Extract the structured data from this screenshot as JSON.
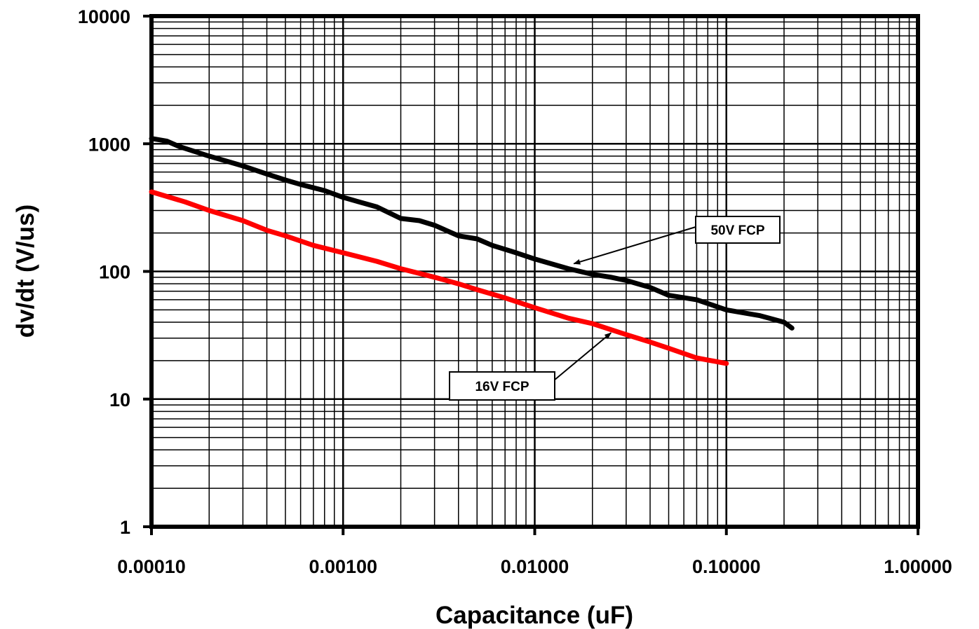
{
  "chart_data": {
    "type": "line",
    "xscale": "log",
    "yscale": "log",
    "xlabel": "Capacitance (uF)",
    "ylabel": "dv/dt  (V/us)",
    "xlim": [
      0.0001,
      1
    ],
    "ylim": [
      1,
      10000
    ],
    "grid": true,
    "x_ticks": [
      "0.00010",
      "0.00100",
      "0.01000",
      "0.10000",
      "1.00000"
    ],
    "y_ticks": [
      "1",
      "10",
      "100",
      "1000",
      "10000"
    ],
    "series": [
      {
        "name": "50V FCP",
        "color": "#000000",
        "x": [
          0.0001,
          0.00012,
          0.00014,
          0.0002,
          0.0003,
          0.0004,
          0.0005,
          0.0006,
          0.0008,
          0.001,
          0.0015,
          0.002,
          0.0025,
          0.003,
          0.004,
          0.005,
          0.006,
          0.008,
          0.01,
          0.015,
          0.02,
          0.025,
          0.03,
          0.04,
          0.05,
          0.07,
          0.1,
          0.15,
          0.2,
          0.22
        ],
        "values": [
          1100,
          1050,
          950,
          800,
          670,
          580,
          520,
          480,
          430,
          380,
          320,
          260,
          250,
          230,
          190,
          180,
          160,
          140,
          125,
          105,
          95,
          90,
          85,
          75,
          65,
          60,
          50,
          45,
          40,
          36
        ]
      },
      {
        "name": "16V FCP",
        "color": "#ff0000",
        "x": [
          0.0001,
          0.00015,
          0.0002,
          0.0003,
          0.0004,
          0.0005,
          0.0007,
          0.001,
          0.0015,
          0.002,
          0.003,
          0.004,
          0.005,
          0.007,
          0.01,
          0.015,
          0.02,
          0.03,
          0.04,
          0.05,
          0.07,
          0.1
        ],
        "values": [
          420,
          350,
          300,
          250,
          210,
          190,
          160,
          140,
          120,
          105,
          90,
          80,
          72,
          62,
          52,
          43,
          39,
          32,
          28,
          25,
          21,
          19
        ]
      }
    ],
    "annotations": [
      {
        "text": "50V FCP",
        "series": "50V FCP",
        "arrow_x": 0.016,
        "arrow_y": 115
      },
      {
        "text": "16V FCP",
        "series": "16V FCP",
        "arrow_x": 0.025,
        "arrow_y": 33
      }
    ]
  }
}
